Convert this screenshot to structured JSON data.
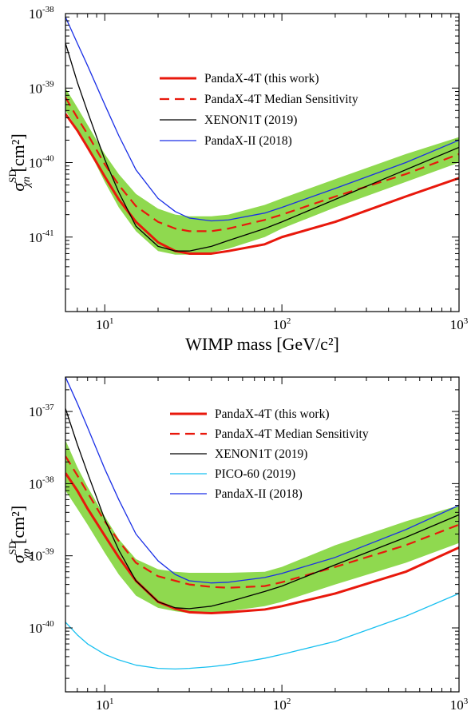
{
  "chart_data": [
    {
      "type": "line",
      "xlabel": "WIMP mass [GeV/c²]",
      "ylabel": {
        "base": "σ",
        "sub": "χn",
        "sup": "SD",
        "unit": " [cm²]"
      },
      "xscale": "log",
      "yscale": "log",
      "xlim": [
        6,
        1000
      ],
      "ylim": [
        1e-42,
        1e-38
      ],
      "xticks": [
        {
          "base": "10",
          "exp": "1"
        },
        {
          "base": "10",
          "exp": "2"
        },
        {
          "base": "10",
          "exp": "3"
        }
      ],
      "yticks": [
        {
          "base": "10",
          "exp": "-41"
        },
        {
          "base": "10",
          "exp": "-40"
        },
        {
          "base": "10",
          "exp": "-39"
        },
        {
          "base": "10",
          "exp": "-38"
        }
      ],
      "legend_position": "upper-center",
      "band": {
        "color": "#8fd94f",
        "x": [
          6,
          7,
          8,
          10,
          12,
          15,
          20,
          25,
          30,
          40,
          50,
          80,
          100,
          200,
          500,
          1000
        ],
        "lower": [
          5e-40,
          2.8e-40,
          1.6e-40,
          5.5e-41,
          2.5e-41,
          1.2e-41,
          6.5e-42,
          5.8e-42,
          5.8e-42,
          6.2e-42,
          7e-42,
          1e-41,
          1.3e-41,
          2.5e-41,
          5.5e-41,
          1e-40
        ],
        "upper": [
          1e-39,
          5.5e-40,
          3.2e-40,
          1.3e-40,
          7e-41,
          3.8e-41,
          2.4e-41,
          2e-41,
          1.9e-41,
          1.9e-41,
          2e-41,
          2.7e-41,
          3.3e-41,
          6e-41,
          1.3e-40,
          2.2e-40
        ]
      },
      "series": [
        {
          "name": "PandaX-4T (this work)",
          "color": "#e8180c",
          "dash": "solid",
          "width": 3,
          "x": [
            6,
            7,
            8,
            10,
            12,
            15,
            20,
            25,
            30,
            40,
            50,
            80,
            100,
            200,
            500,
            1000
          ],
          "values": [
            4.5e-40,
            2.7e-40,
            1.6e-40,
            6.5e-41,
            3.2e-41,
            1.6e-41,
            8.5e-42,
            6.5e-42,
            6e-42,
            6e-42,
            6.5e-42,
            8e-42,
            1e-41,
            1.6e-41,
            3.5e-41,
            6.2e-41
          ]
        },
        {
          "name": "PandaX-4T Median Sensitivity",
          "color": "#e8180c",
          "dash": "dashed",
          "width": 2.2,
          "x": [
            6,
            7,
            8,
            10,
            12,
            15,
            20,
            25,
            30,
            40,
            50,
            80,
            100,
            200,
            500,
            1000
          ],
          "values": [
            7.5e-40,
            4e-40,
            2.4e-40,
            9.5e-41,
            5e-41,
            2.6e-41,
            1.6e-41,
            1.3e-41,
            1.2e-41,
            1.2e-41,
            1.3e-41,
            1.7e-41,
            2e-41,
            3.5e-41,
            7e-41,
            1.3e-40
          ]
        },
        {
          "name": "XENON1T (2019)",
          "color": "#000000",
          "dash": "solid",
          "width": 1.3,
          "x": [
            6,
            7,
            8,
            10,
            12,
            15,
            20,
            25,
            30,
            40,
            50,
            80,
            100,
            200,
            500,
            1000
          ],
          "values": [
            4e-39,
            1.2e-39,
            4.8e-40,
            1.1e-40,
            4e-41,
            1.4e-41,
            7.5e-42,
            6.5e-42,
            6.5e-42,
            7.5e-42,
            9e-42,
            1.3e-41,
            1.6e-41,
            3.2e-41,
            8e-41,
            1.6e-40
          ]
        },
        {
          "name": "PandaX-II (2018)",
          "color": "#1a2fe6",
          "dash": "solid",
          "width": 1.3,
          "x": [
            6,
            7,
            8,
            10,
            12,
            15,
            20,
            25,
            30,
            40,
            50,
            80,
            100,
            200,
            500,
            1000
          ],
          "values": [
            9e-39,
            4e-39,
            2e-39,
            6e-40,
            2.3e-40,
            8e-41,
            3.3e-41,
            2.2e-41,
            1.8e-41,
            1.65e-41,
            1.7e-41,
            2.1e-41,
            2.5e-41,
            4.5e-41,
            1e-40,
            2e-40
          ]
        }
      ]
    },
    {
      "type": "line",
      "xlabel": "WIMP mass [GeV/c²]",
      "ylabel": {
        "base": "σ",
        "sub": "χp",
        "sup": "SD",
        "unit": " [cm²]"
      },
      "xscale": "log",
      "yscale": "log",
      "xlim": [
        6,
        1000
      ],
      "ylim": [
        1.3e-41,
        3e-37
      ],
      "xticks": [
        {
          "base": "10",
          "exp": "1"
        },
        {
          "base": "10",
          "exp": "2"
        },
        {
          "base": "10",
          "exp": "3"
        }
      ],
      "yticks": [
        {
          "base": "10",
          "exp": "-40"
        },
        {
          "base": "10",
          "exp": "-39"
        },
        {
          "base": "10",
          "exp": "-38"
        },
        {
          "base": "10",
          "exp": "-37"
        }
      ],
      "legend_position": "upper-center",
      "band": {
        "color": "#8fd94f",
        "x": [
          6,
          7,
          8,
          10,
          12,
          15,
          20,
          25,
          30,
          40,
          50,
          80,
          100,
          200,
          500,
          1000
        ],
        "lower": [
          8e-39,
          4.5e-39,
          2.7e-39,
          1.1e-39,
          5.5e-40,
          2.8e-40,
          1.9e-40,
          1.7e-40,
          1.6e-40,
          1.6e-40,
          1.7e-40,
          2e-40,
          2.3e-40,
          4e-40,
          8e-40,
          1.5e-39
        ],
        "upper": [
          4e-38,
          1.7e-38,
          9e-39,
          3.5e-39,
          1.7e-39,
          9e-40,
          6.5e-40,
          6e-40,
          5.8e-40,
          5.8e-40,
          5.8e-40,
          6e-40,
          7e-40,
          1.4e-39,
          3e-39,
          5e-39
        ]
      },
      "series": [
        {
          "name": "PandaX-4T (this work)",
          "color": "#e8180c",
          "dash": "solid",
          "width": 3,
          "x": [
            6,
            7,
            8,
            10,
            12,
            15,
            20,
            25,
            30,
            40,
            50,
            80,
            100,
            200,
            500,
            1000
          ],
          "values": [
            1.4e-38,
            8e-39,
            4.5e-39,
            1.9e-39,
            9.5e-40,
            4.5e-40,
            2.3e-40,
            1.85e-40,
            1.65e-40,
            1.6e-40,
            1.65e-40,
            1.8e-40,
            2e-40,
            3e-40,
            6e-40,
            1.3e-39
          ]
        },
        {
          "name": "PandaX-4T Median Sensitivity",
          "color": "#e8180c",
          "dash": "dashed",
          "width": 2.2,
          "x": [
            6,
            7,
            8,
            10,
            12,
            15,
            20,
            25,
            30,
            40,
            50,
            80,
            100,
            200,
            500,
            1000
          ],
          "values": [
            2.4e-38,
            1.3e-38,
            7.5e-39,
            3e-39,
            1.6e-39,
            8e-40,
            5.2e-40,
            4.5e-40,
            4e-40,
            3.7e-40,
            3.6e-40,
            3.8e-40,
            4.3e-40,
            7e-40,
            1.4e-39,
            2.7e-39
          ]
        },
        {
          "name": "XENON1T (2019)",
          "color": "#000000",
          "dash": "solid",
          "width": 1.3,
          "x": [
            6,
            7,
            8,
            10,
            12,
            15,
            20,
            25,
            30,
            40,
            50,
            80,
            100,
            200,
            500,
            1000
          ],
          "values": [
            1.1e-37,
            3.5e-38,
            1.4e-38,
            3.2e-39,
            1.2e-39,
            4.5e-40,
            2.3e-40,
            1.9e-40,
            1.85e-40,
            2e-40,
            2.3e-40,
            3.2e-40,
            3.8e-40,
            7.5e-40,
            1.8e-39,
            3.7e-39
          ]
        },
        {
          "name": "PICO-60 (2019)",
          "color": "#18c0f0",
          "dash": "solid",
          "width": 1.3,
          "x": [
            6,
            7,
            8,
            10,
            12,
            15,
            20,
            25,
            30,
            40,
            50,
            80,
            100,
            200,
            500,
            1000
          ],
          "values": [
            1.2e-40,
            8e-41,
            6e-41,
            4.3e-41,
            3.6e-41,
            3.05e-41,
            2.75e-41,
            2.7e-41,
            2.75e-41,
            2.9e-41,
            3.1e-41,
            3.8e-41,
            4.3e-41,
            6.5e-41,
            1.45e-40,
            3e-40
          ]
        },
        {
          "name": "PandaX-II (2018)",
          "color": "#1a2fe6",
          "dash": "solid",
          "width": 1.3,
          "x": [
            6,
            7,
            8,
            10,
            12,
            15,
            20,
            25,
            30,
            40,
            50,
            80,
            100,
            200,
            500,
            1000
          ],
          "values": [
            3e-37,
            1.3e-37,
            6e-38,
            1.6e-38,
            6e-39,
            2e-39,
            8.5e-40,
            5.5e-40,
            4.5e-40,
            4.2e-40,
            4.3e-40,
            5e-40,
            5.7e-40,
            9.5e-40,
            2.3e-39,
            5e-39
          ]
        }
      ]
    }
  ]
}
